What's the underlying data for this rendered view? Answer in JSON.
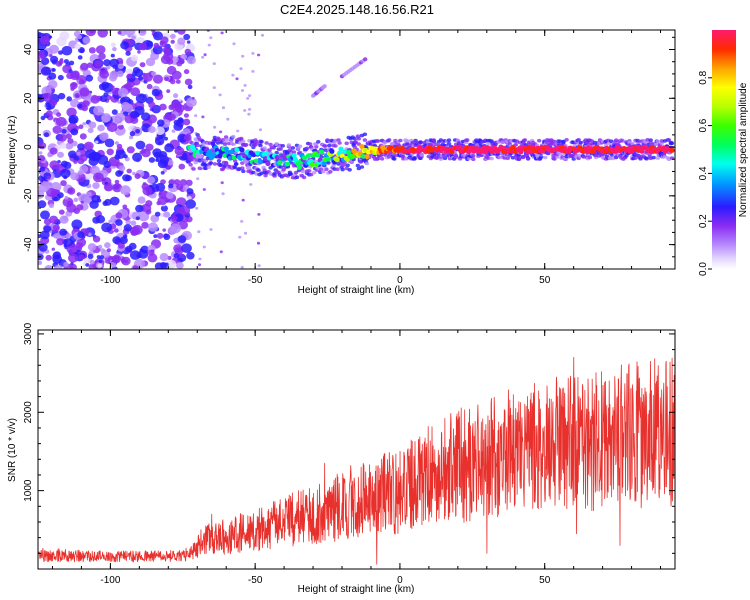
{
  "title": "C2E4.2025.148.16.56.R21",
  "colors": {
    "snr_line": "#e8302c",
    "ridge": "#e41e50",
    "axis": "#000000"
  },
  "chart_data": [
    {
      "type": "heatmap",
      "xlabel": "Height of straight line (km)",
      "ylabel": "Frequency (Hz)",
      "xlim": [
        -125,
        95
      ],
      "ylim": [
        -50,
        48
      ],
      "x_ticks": [
        -100,
        -50,
        0,
        50
      ],
      "x_tick_labels": [
        "-100",
        "-50",
        "0",
        "50"
      ],
      "y_ticks": [
        -40,
        -20,
        0,
        20,
        40
      ],
      "y_tick_labels": [
        "-40",
        "-20",
        "0",
        "20",
        "40"
      ],
      "noise_region_x": [
        -125,
        -72
      ],
      "ridge": {
        "x": [
          -73,
          -65,
          -55,
          -45,
          -35,
          -25,
          -15,
          -5,
          0,
          10,
          20,
          30,
          40,
          50,
          60,
          70,
          80,
          94
        ],
        "frequency": [
          -2,
          -2,
          -3,
          -5,
          -6,
          -4,
          -2,
          -1,
          -1,
          -1,
          -1,
          -1,
          -1,
          -1,
          -1,
          -1,
          -1,
          -1
        ],
        "amplitude": [
          0.25,
          0.3,
          0.3,
          0.3,
          0.3,
          0.4,
          0.6,
          0.85,
          0.95,
          0.95,
          0.95,
          0.97,
          0.97,
          0.97,
          0.97,
          0.97,
          0.97,
          0.97
        ]
      },
      "faint_features": [
        {
          "x": [
            -30,
            -26
          ],
          "frequency": [
            21,
            25
          ]
        },
        {
          "x": [
            -20,
            -12
          ],
          "frequency": [
            29,
            36
          ]
        }
      ],
      "colorbar": {
        "label": "Normalized spectral amplitude",
        "range": [
          0,
          1
        ],
        "ticks": [
          0.0,
          0.2,
          0.4,
          0.6,
          0.8
        ],
        "tick_labels": [
          "0.0",
          "0.2",
          "0.4",
          "0.6",
          "0.8"
        ]
      }
    },
    {
      "type": "line",
      "xlabel": "Height of straight line (km)",
      "ylabel": "SNR (10 * v/v)",
      "xlim": [
        -125,
        95
      ],
      "ylim": [
        0,
        3050
      ],
      "x_ticks": [
        -100,
        -50,
        0,
        50
      ],
      "x_tick_labels": [
        "-100",
        "-50",
        "0",
        "50"
      ],
      "y_ticks": [
        1000,
        2000,
        3000
      ],
      "y_tick_labels": [
        "1000",
        "2000",
        "3000"
      ],
      "grid": false,
      "series": [
        {
          "x": [
            -125,
            -110,
            -90,
            -73,
            -68,
            -60,
            -50,
            -40,
            -30,
            -20,
            -10,
            0,
            5,
            10,
            20,
            30,
            40,
            50,
            60,
            70,
            80,
            94
          ],
          "y": [
            170,
            160,
            160,
            170,
            350,
            420,
            500,
            600,
            700,
            800,
            900,
            1000,
            1150,
            1200,
            1300,
            1400,
            1500,
            1550,
            1600,
            1650,
            1700,
            1750
          ],
          "spikes": [
            {
              "x": -65,
              "y": 700
            },
            {
              "x": -35,
              "y": 1000
            },
            {
              "x": -26,
              "y": 1350
            },
            {
              "x": 40,
              "y": 2050
            },
            {
              "x": 54,
              "y": 2450
            },
            {
              "x": 60,
              "y": 2700
            },
            {
              "x": 76,
              "y": 3050
            },
            {
              "x": 92,
              "y": 2650
            },
            {
              "x": -8,
              "y": 60
            },
            {
              "x": 30,
              "y": 200
            },
            {
              "x": 61,
              "y": 450
            },
            {
              "x": 76,
              "y": 300
            }
          ]
        }
      ]
    }
  ]
}
